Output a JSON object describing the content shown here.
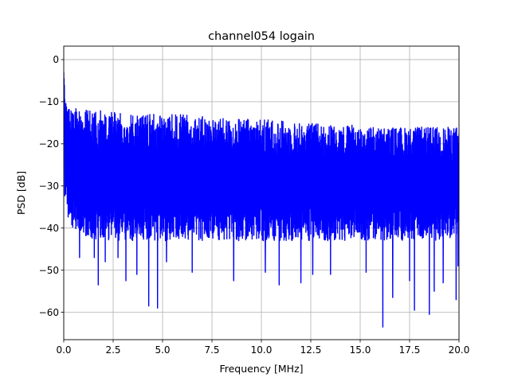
{
  "chart_data": {
    "type": "line",
    "title": "channel054 logain",
    "xlabel": "Frequency [MHz]",
    "ylabel": "PSD [dB]",
    "xlim": [
      0,
      20
    ],
    "ylim": [
      -66.5,
      3.2
    ],
    "xticks": [
      "0.0",
      "2.5",
      "5.0",
      "7.5",
      "10.0",
      "12.5",
      "15.0",
      "17.5",
      "20.0"
    ],
    "yticks": [
      "0",
      "−10",
      "−20",
      "−30",
      "−40",
      "−50",
      "−60"
    ],
    "grid": true,
    "series": [
      {
        "color": "#0000ff",
        "upper_envelope": {
          "x": [
            0.0,
            0.05,
            0.1,
            0.3,
            0.5,
            1.0,
            2.0,
            3.0,
            4.0,
            5.0,
            6.0,
            7.0,
            8.0,
            9.0,
            10.0,
            11.0,
            12.0,
            13.0,
            14.0,
            15.0,
            16.0,
            17.0,
            18.0,
            19.0,
            20.0
          ],
          "y": [
            -3,
            -8,
            -10,
            -11,
            -11,
            -12,
            -12,
            -12.5,
            -13,
            -13,
            -13,
            -13.5,
            -14,
            -14,
            -14,
            -14.5,
            -15,
            -15,
            -15.5,
            -15.5,
            -16,
            -16,
            -16,
            -16,
            -16
          ]
        },
        "lower_envelope": {
          "x": [
            0.0,
            1.0,
            2.0,
            3.0,
            4.0,
            5.0,
            6.0,
            7.0,
            8.0,
            9.0,
            10.0,
            11.0,
            12.0,
            13.0,
            14.0,
            15.0,
            16.0,
            17.0,
            18.0,
            19.0,
            20.0
          ],
          "y": [
            -38,
            -42,
            -43,
            -43,
            -43,
            -43,
            -43,
            -43,
            -43,
            -43,
            -43,
            -43,
            -43,
            -43,
            -43,
            -43,
            -43,
            -43,
            -43,
            -43,
            -42
          ]
        },
        "notable_minima": [
          {
            "x": 0.8,
            "y": -47
          },
          {
            "x": 1.55,
            "y": -47
          },
          {
            "x": 1.75,
            "y": -53.5
          },
          {
            "x": 2.1,
            "y": -48
          },
          {
            "x": 2.75,
            "y": -47
          },
          {
            "x": 3.15,
            "y": -52.5
          },
          {
            "x": 3.7,
            "y": -51
          },
          {
            "x": 4.3,
            "y": -58.5
          },
          {
            "x": 4.75,
            "y": -59
          },
          {
            "x": 5.2,
            "y": -48
          },
          {
            "x": 6.5,
            "y": -50.5
          },
          {
            "x": 8.6,
            "y": -52.5
          },
          {
            "x": 10.2,
            "y": -50.5
          },
          {
            "x": 10.9,
            "y": -53.5
          },
          {
            "x": 12.0,
            "y": -53
          },
          {
            "x": 12.6,
            "y": -51
          },
          {
            "x": 13.5,
            "y": -51
          },
          {
            "x": 15.3,
            "y": -50.5
          },
          {
            "x": 16.15,
            "y": -63.5
          },
          {
            "x": 16.65,
            "y": -56.5
          },
          {
            "x": 17.5,
            "y": -52.5
          },
          {
            "x": 17.75,
            "y": -59.5
          },
          {
            "x": 18.5,
            "y": -60.5
          },
          {
            "x": 18.75,
            "y": -55
          },
          {
            "x": 19.2,
            "y": -53
          },
          {
            "x": 19.85,
            "y": -57
          },
          {
            "x": 19.95,
            "y": -49
          }
        ]
      }
    ]
  }
}
